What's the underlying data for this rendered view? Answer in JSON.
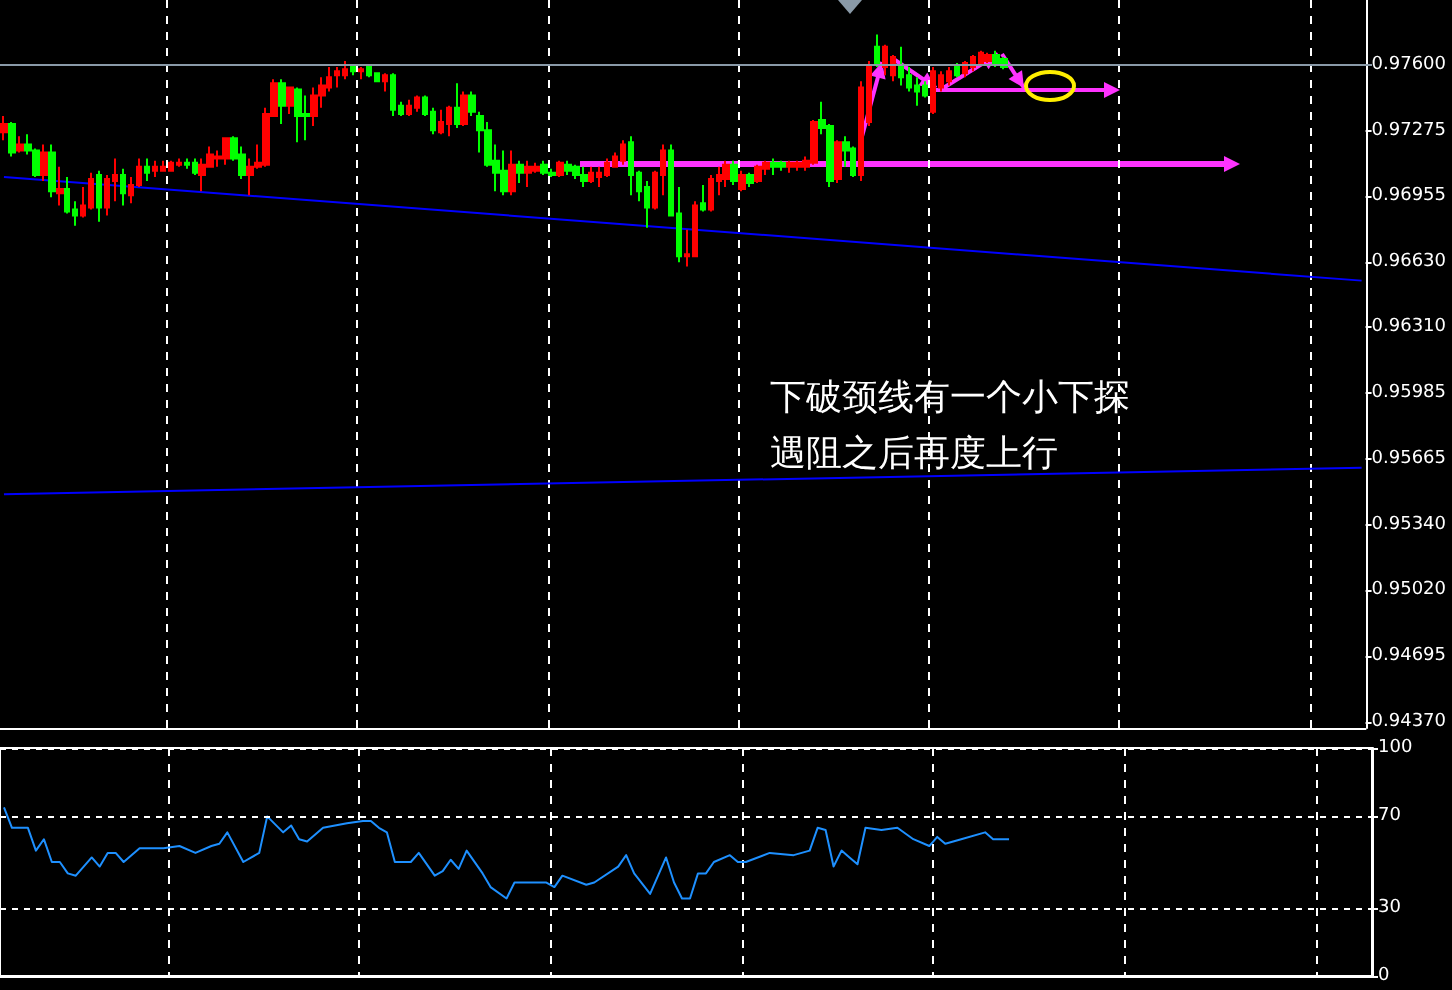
{
  "chart_data": [
    {
      "type": "candlestick",
      "tick_labels": "y",
      "grid": "x",
      "colors": [
        "#ff0000",
        "#00ff00",
        "#ff0000",
        "#00ff00",
        "#00ff00",
        "#ff0000",
        "#00ff00",
        "#ff0000",
        "#00ff00",
        "#00ff00",
        "#ff0000",
        "#ff0000",
        "#00ff00",
        "#ff0000",
        "#ff0000",
        "#00ff00",
        "#ff0000",
        "#ff0000",
        "#00ff00",
        "#ff0000",
        "#ff0000",
        "#ff0000",
        "#ff0000",
        "#00ff00",
        "#00ff00",
        "#ff0000",
        "#ff0000",
        "#ff0000",
        "#ff0000",
        "#00ff00",
        "#00ff00",
        "#ff0000",
        "#ff0000",
        "#ff0000",
        "#ff0000",
        "#00ff00",
        "#ff0000",
        "#00ff00",
        "#00ff00",
        "#ff0000",
        "#ff0000",
        "#ff0000",
        "#ff0000",
        "#ff0000",
        "#00ff00",
        "#ff0000",
        "#00ff00",
        "#00ff00",
        "#ff0000",
        "#00ff00",
        "#00ff00",
        "#ff0000",
        "#ff0000",
        "#00ff00",
        "#00ff00",
        "#ff0000",
        "#ff0000",
        "#00ff00",
        "#ff0000",
        "#00ff00",
        "#00ff00",
        "#00ff00",
        "#00ff00",
        "#00ff00",
        "#ff0000",
        "#00ff00",
        "#ff0000",
        "#ff0000",
        "#00ff00",
        "#00ff00",
        "#ff0000",
        "#00ff00",
        "#00ff00",
        "#00ff00",
        "#ff0000",
        "#ff0000",
        "#ff0000",
        "#ff0000",
        "#ff0000",
        "#00ff00",
        "#00ff00",
        "#00ff00",
        "#ff0000",
        "#ff0000",
        "#00ff00",
        "#00ff00",
        "#ff0000",
        "#ff0000",
        "#00ff00",
        "#ff0000",
        "#ff0000",
        "#ff0000",
        "#00ff00",
        "#ff0000",
        "#00ff00",
        "#ff0000",
        "#ff0000",
        "#00ff00",
        "#00ff00",
        "#ff0000",
        "#ff0000",
        "#ff0000",
        "#ff0000",
        "#00ff00",
        "#00ff00",
        "#ff0000",
        "#00ff00",
        "#00ff00",
        "#ff0000",
        "#ff0000",
        "#00ff00",
        "#ff0000",
        "#ff0000",
        "#00ff00",
        "#00ff00",
        "#00ff00",
        "#00ff00",
        "#ff0000",
        "#ff0000",
        "#ff0000",
        "#00ff00",
        "#ff0000",
        "#ff0000",
        "#ff0000",
        "#ff0000",
        "#00ff00",
        "#00ff00",
        null,
        null,
        null,
        null,
        null,
        null,
        null,
        null,
        null,
        null,
        null,
        null,
        null,
        null,
        null,
        null,
        null,
        null,
        null,
        null,
        null,
        null,
        null,
        null,
        null,
        null,
        null,
        null,
        null,
        null,
        null,
        null,
        null,
        null,
        null,
        null,
        null,
        null,
        null,
        null,
        null,
        null,
        null,
        null,
        null
      ],
      "ylim": [
        0.9434,
        0.9792
      ],
      "yticks": [
        {
          "value": 0.976,
          "label": "0.97600"
        },
        {
          "value": 0.97275,
          "label": "0.97275"
        },
        {
          "value": 0.96955,
          "label": "0.96955"
        },
        {
          "value": 0.9663,
          "label": "0.96630"
        },
        {
          "value": 0.9631,
          "label": "0.96310"
        },
        {
          "value": 0.95985,
          "label": "0.95985"
        },
        {
          "value": 0.95665,
          "label": "0.95665"
        },
        {
          "value": 0.9534,
          "label": "0.95340"
        },
        {
          "value": 0.9502,
          "label": "0.95020"
        },
        {
          "value": 0.94695,
          "label": "0.94695"
        },
        {
          "value": 0.9437,
          "label": "0.94370"
        }
      ],
      "ref_lines": [
        {
          "axis": "y",
          "value": 0.976,
          "color": "#8a9aa8"
        }
      ],
      "annotations": [
        "下破颈线有一个小下探",
        "遇阻之后再度上行"
      ],
      "categories": [
        null,
        null,
        null,
        null,
        null,
        null,
        null,
        null,
        null,
        null,
        null,
        null,
        null,
        null,
        null,
        null,
        null,
        null,
        null,
        null,
        null,
        null,
        null,
        null,
        null,
        null,
        null,
        null,
        null,
        null,
        null,
        null,
        null,
        null,
        null,
        null,
        null,
        null,
        null,
        null,
        null,
        null,
        null,
        null,
        null,
        null,
        null,
        null,
        null,
        null,
        null,
        null,
        null,
        null,
        null,
        null,
        null,
        null,
        null,
        null,
        null,
        null,
        null,
        null,
        null,
        null,
        null,
        null,
        null,
        null,
        null,
        null,
        null,
        null,
        null,
        null,
        null,
        null,
        null,
        null,
        null,
        null,
        null,
        null,
        null,
        null,
        null,
        null,
        null,
        null,
        null,
        null,
        null,
        null,
        null,
        null,
        null,
        null,
        null,
        null,
        null,
        null,
        null,
        null,
        null,
        null,
        null,
        null,
        null,
        null,
        null,
        null,
        null,
        null,
        null,
        null,
        null,
        null,
        null,
        null,
        null,
        null,
        null,
        null,
        null,
        null,
        null,
        null,
        null,
        null,
        null,
        null,
        null,
        null,
        null,
        null,
        null,
        null,
        null,
        null,
        null,
        null,
        null,
        null,
        null,
        null,
        null,
        null,
        null,
        null,
        null,
        null,
        null,
        null,
        null,
        null,
        null,
        null,
        null,
        null,
        null,
        null,
        null,
        null,
        null,
        null,
        null,
        null,
        null,
        null,
        null,
        null
      ],
      "ohlc": [
        [
          0.9727,
          0.9735,
          0.9723,
          0.9731
        ],
        [
          0.9731,
          0.9732,
          0.9715,
          0.9717
        ],
        [
          0.9718,
          0.9725,
          0.9717,
          0.9721
        ],
        [
          0.9721,
          0.9726,
          0.9716,
          0.9718
        ],
        [
          0.9718,
          0.9719,
          0.9705,
          0.9706
        ],
        [
          0.9706,
          0.9721,
          0.9703,
          0.9717
        ],
        [
          0.9717,
          0.9721,
          0.9695,
          0.9698
        ],
        [
          0.9697,
          0.971,
          0.9691,
          0.9699
        ],
        [
          0.9699,
          0.9705,
          0.9687,
          0.9688
        ],
        [
          0.9689,
          0.9693,
          0.9681,
          0.9686
        ],
        [
          0.9686,
          0.97,
          0.9685,
          0.9691
        ],
        [
          0.969,
          0.9707,
          0.9689,
          0.9704
        ],
        [
          0.9706,
          0.9708,
          0.9683,
          0.969
        ],
        [
          0.969,
          0.9706,
          0.9686,
          0.9704
        ],
        [
          0.9703,
          0.9714,
          0.9693,
          0.9706
        ],
        [
          0.9706,
          0.9709,
          0.9691,
          0.9697
        ],
        [
          0.9696,
          0.9705,
          0.9692,
          0.9701
        ],
        [
          0.9701,
          0.9714,
          0.97,
          0.971
        ],
        [
          0.971,
          0.9714,
          0.9703,
          0.9707
        ],
        [
          0.9708,
          0.9713,
          0.9705,
          0.971
        ],
        [
          0.9708,
          0.9713,
          0.9708,
          0.971
        ],
        [
          0.9708,
          0.9713,
          0.9708,
          0.9712
        ],
        [
          0.9711,
          0.9714,
          0.971,
          0.9712
        ],
        [
          0.9712,
          0.9714,
          0.9709,
          0.9711
        ],
        [
          0.9712,
          0.9714,
          0.9706,
          0.9707
        ],
        [
          0.9706,
          0.9714,
          0.9698,
          0.9711
        ],
        [
          0.971,
          0.972,
          0.971,
          0.9716
        ],
        [
          0.9714,
          0.9718,
          0.971,
          0.9715
        ],
        [
          0.9714,
          0.9724,
          0.9711,
          0.9724
        ],
        [
          0.9724,
          0.9725,
          0.9713,
          0.9714
        ],
        [
          0.9716,
          0.972,
          0.9704,
          0.9706
        ],
        [
          0.9706,
          0.9714,
          0.9696,
          0.971
        ],
        [
          0.971,
          0.9721,
          0.9709,
          0.9712
        ],
        [
          0.9711,
          0.9739,
          0.971,
          0.9736
        ],
        [
          0.9735,
          0.9753,
          0.9735,
          0.9751
        ],
        [
          0.9751,
          0.9753,
          0.9731,
          0.974
        ],
        [
          0.974,
          0.9749,
          0.9736,
          0.9749
        ],
        [
          0.9748,
          0.9749,
          0.9722,
          0.9735
        ],
        [
          0.9736,
          0.9745,
          0.9723,
          0.9735
        ],
        [
          0.9735,
          0.9749,
          0.973,
          0.9745
        ],
        [
          0.9745,
          0.9754,
          0.9739,
          0.975
        ],
        [
          0.9749,
          0.9759,
          0.9747,
          0.9754
        ],
        [
          0.9755,
          0.9759,
          0.9749,
          0.9757
        ],
        [
          0.9755,
          0.9762,
          0.9753,
          0.9758
        ],
        [
          0.9759,
          0.976,
          0.9755,
          0.9757
        ],
        [
          0.9757,
          0.9759,
          0.9753,
          0.9758
        ],
        [
          0.9759,
          0.976,
          0.9754,
          0.9755
        ],
        [
          0.9756,
          0.9756,
          0.9752,
          0.9752
        ],
        [
          0.9752,
          0.9756,
          0.9747,
          0.9755
        ],
        [
          0.9755,
          0.9756,
          0.9735,
          0.9738
        ],
        [
          0.974,
          0.9742,
          0.9735,
          0.9736
        ],
        [
          0.9736,
          0.9743,
          0.9735,
          0.974
        ],
        [
          0.9739,
          0.9745,
          0.9737,
          0.9744
        ],
        [
          0.9744,
          0.9745,
          0.9735,
          0.9736
        ],
        [
          0.9737,
          0.9739,
          0.9726,
          0.9728
        ],
        [
          0.9727,
          0.9738,
          0.9726,
          0.9732
        ],
        [
          0.9731,
          0.974,
          0.9725,
          0.9739
        ],
        [
          0.9739,
          0.9751,
          0.9729,
          0.9731
        ],
        [
          0.9731,
          0.9747,
          0.973,
          0.9745
        ],
        [
          0.9745,
          0.9747,
          0.9735,
          0.9737
        ],
        [
          0.9735,
          0.9737,
          0.9717,
          0.9728
        ],
        [
          0.9728,
          0.9732,
          0.971,
          0.9711
        ],
        [
          0.9713,
          0.9721,
          0.9698,
          0.9707
        ],
        [
          0.9708,
          0.9718,
          0.9696,
          0.9698
        ],
        [
          0.9698,
          0.9718,
          0.9696,
          0.9711
        ],
        [
          0.9711,
          0.9713,
          0.9702,
          0.9707
        ],
        [
          0.9707,
          0.9713,
          0.97,
          0.971
        ],
        [
          0.9708,
          0.9712,
          0.9707,
          0.971
        ],
        [
          0.9711,
          0.9713,
          0.9706,
          0.9707
        ],
        [
          0.9707,
          0.9709,
          0.9705,
          0.9706
        ],
        [
          0.9706,
          0.9713,
          0.9705,
          0.9712
        ],
        [
          0.9711,
          0.9713,
          0.9706,
          0.9708
        ],
        [
          0.971,
          0.9711,
          0.9704,
          0.9706
        ],
        [
          0.9706,
          0.971,
          0.97,
          0.9703
        ],
        [
          0.9703,
          0.971,
          0.9702,
          0.9707
        ],
        [
          0.9705,
          0.971,
          0.97,
          0.9707
        ],
        [
          0.9706,
          0.9714,
          0.9705,
          0.9712
        ],
        [
          0.971,
          0.9717,
          0.971,
          0.9715
        ],
        [
          0.9713,
          0.9723,
          0.9711,
          0.9721
        ],
        [
          0.9722,
          0.9725,
          0.9696,
          0.9706
        ],
        [
          0.9707,
          0.9708,
          0.9693,
          0.9698
        ],
        [
          0.97,
          0.9703,
          0.968,
          0.969
        ],
        [
          0.969,
          0.9708,
          0.9689,
          0.9707
        ],
        [
          0.9706,
          0.9721,
          0.9696,
          0.9718
        ],
        [
          0.9718,
          0.9721,
          0.9686,
          0.9686
        ],
        [
          0.9687,
          0.97,
          0.9663,
          0.9666
        ],
        [
          0.9666,
          0.9679,
          0.9661,
          0.9667
        ],
        [
          0.9666,
          0.9693,
          0.9666,
          0.9691
        ],
        [
          0.9692,
          0.9701,
          0.9688,
          0.9689
        ],
        [
          0.9689,
          0.9706,
          0.9688,
          0.9704
        ],
        [
          0.9703,
          0.971,
          0.9696,
          0.9706
        ],
        [
          0.9704,
          0.9713,
          0.97,
          0.9711
        ],
        [
          0.9711,
          0.9713,
          0.9701,
          0.9703
        ],
        [
          0.9699,
          0.9708,
          0.9698,
          0.9706
        ],
        [
          0.9706,
          0.9707,
          0.97,
          0.9702
        ],
        [
          0.9703,
          0.9711,
          0.9702,
          0.971
        ],
        [
          0.9709,
          0.9713,
          0.9706,
          0.9712
        ],
        [
          0.9712,
          0.9714,
          0.9706,
          0.971
        ],
        [
          0.9712,
          0.9713,
          0.9708,
          0.971
        ],
        [
          0.971,
          0.9713,
          0.9707,
          0.9712
        ],
        [
          0.971,
          0.9713,
          0.9708,
          0.9712
        ],
        [
          0.971,
          0.9715,
          0.9708,
          0.9713
        ],
        [
          0.9712,
          0.9733,
          0.9711,
          0.9732
        ],
        [
          0.9733,
          0.9742,
          0.9726,
          0.9729
        ],
        [
          0.973,
          0.9731,
          0.97,
          0.9703
        ],
        [
          0.9704,
          0.9723,
          0.9702,
          0.9722
        ],
        [
          0.9722,
          0.9725,
          0.971,
          0.9718
        ],
        [
          0.9719,
          0.972,
          0.9705,
          0.9706
        ],
        [
          0.9706,
          0.9752,
          0.9703,
          0.9749
        ],
        [
          0.9732,
          0.9762,
          0.973,
          0.976
        ],
        [
          0.9769,
          0.9775,
          0.9759,
          0.976
        ],
        [
          0.9759,
          0.977,
          0.9755,
          0.9769
        ],
        [
          0.9755,
          0.9765,
          0.9752,
          0.9764
        ],
        [
          0.976,
          0.9769,
          0.975,
          0.9754
        ],
        [
          0.9755,
          0.9759,
          0.9747,
          0.9749
        ],
        [
          0.975,
          0.9754,
          0.974,
          0.9747
        ],
        [
          0.975,
          0.9752,
          0.9744,
          0.9745
        ],
        [
          0.9737,
          0.9759,
          0.9736,
          0.9757
        ],
        [
          0.9749,
          0.9757,
          0.9747,
          0.9755
        ],
        [
          0.9752,
          0.9759,
          0.975,
          0.9757
        ],
        [
          0.9759,
          0.9761,
          0.9754,
          0.9755
        ],
        [
          0.9756,
          0.9762,
          0.9754,
          0.9761
        ],
        [
          0.9759,
          0.9765,
          0.9757,
          0.9764
        ],
        [
          0.9761,
          0.9767,
          0.976,
          0.9766
        ],
        [
          0.9762,
          0.9766,
          0.9761,
          0.9765
        ],
        [
          0.9765,
          0.9767,
          0.9759,
          0.976
        ],
        [
          0.9763,
          0.9764,
          0.9758,
          0.9759
        ],
        null,
        null,
        null,
        null,
        null,
        null,
        null,
        null,
        null,
        null,
        null,
        null,
        null,
        null,
        null,
        null,
        null,
        null,
        null,
        null,
        null,
        null,
        null,
        null,
        null,
        null,
        null,
        null,
        null,
        null,
        null,
        null,
        null,
        null,
        null,
        null,
        null,
        null,
        null,
        null,
        null,
        null,
        null,
        null,
        null
      ],
      "series": [
        {
          "type": "line",
          "color": "#0000ff",
          "values": [
            0.9705,
            null,
            null,
            null,
            null,
            null,
            null,
            null,
            null,
            null,
            null,
            null,
            null,
            null,
            null,
            null,
            null,
            null,
            null,
            null,
            null,
            null,
            null,
            null,
            null,
            null,
            null,
            null,
            null,
            null,
            null,
            null,
            null,
            null,
            null,
            null,
            null,
            null,
            null,
            null,
            null,
            null,
            null,
            null,
            null,
            null,
            null,
            null,
            null,
            null,
            null,
            null,
            null,
            null,
            null,
            null,
            null,
            null,
            null,
            null,
            null,
            null,
            null,
            null,
            null,
            null,
            null,
            null,
            null,
            null,
            null,
            null,
            null,
            null,
            null,
            null,
            null,
            null,
            null,
            null,
            null,
            null,
            null,
            null,
            null,
            null,
            null,
            null,
            null,
            null,
            null,
            null,
            null,
            null,
            null,
            null,
            null,
            null,
            null,
            null,
            null,
            null,
            null,
            null,
            null,
            null,
            null,
            null,
            null,
            null,
            null,
            null,
            null,
            null,
            null,
            null,
            null,
            null,
            null,
            null,
            null,
            null,
            null,
            null,
            null,
            null,
            null,
            null,
            null,
            null,
            null,
            null,
            null,
            null,
            null,
            null,
            null,
            null,
            null,
            null,
            null,
            null,
            null,
            null,
            null,
            null,
            null,
            null,
            null,
            null,
            null,
            null,
            null,
            null,
            null,
            null,
            null,
            null,
            null,
            null,
            null,
            null,
            null,
            null,
            null,
            null,
            null,
            null,
            null,
            null,
            null,
            0.9654
          ]
        },
        {
          "type": "line",
          "color": "#0000ff",
          "values": [
            0.9549,
            null,
            null,
            null,
            null,
            null,
            null,
            null,
            null,
            null,
            null,
            null,
            null,
            null,
            null,
            null,
            null,
            null,
            null,
            null,
            null,
            null,
            null,
            null,
            null,
            null,
            null,
            null,
            null,
            null,
            null,
            null,
            null,
            null,
            null,
            null,
            null,
            null,
            null,
            null,
            null,
            null,
            null,
            null,
            null,
            null,
            null,
            null,
            null,
            null,
            null,
            null,
            null,
            null,
            null,
            null,
            null,
            null,
            null,
            null,
            null,
            null,
            null,
            null,
            null,
            null,
            null,
            null,
            null,
            null,
            null,
            null,
            null,
            null,
            null,
            null,
            null,
            null,
            null,
            null,
            null,
            null,
            null,
            null,
            null,
            null,
            null,
            null,
            null,
            null,
            null,
            null,
            null,
            null,
            null,
            null,
            null,
            null,
            null,
            null,
            null,
            null,
            null,
            null,
            null,
            null,
            null,
            null,
            null,
            null,
            null,
            null,
            null,
            null,
            null,
            null,
            null,
            null,
            null,
            null,
            null,
            null,
            null,
            null,
            null,
            null,
            null,
            null,
            null,
            null,
            null,
            null,
            null,
            null,
            null,
            null,
            null,
            null,
            null,
            null,
            null,
            null,
            null,
            null,
            null,
            null,
            null,
            null,
            null,
            null,
            null,
            null,
            null,
            null,
            null,
            null,
            null,
            null,
            null,
            null,
            null,
            null,
            null,
            null,
            null,
            null,
            null,
            null,
            null,
            null,
            null,
            0.9562
          ]
        }
      ]
    },
    {
      "type": "line",
      "tick_labels": "y",
      "grid": true,
      "color": "#1e90ff",
      "ylim": [
        0,
        100
      ],
      "yticks": [
        0,
        30,
        70,
        100
      ],
      "categories": [
        null,
        null,
        null,
        null,
        null,
        null,
        null,
        null,
        null,
        null,
        null,
        null,
        null,
        null,
        null,
        null,
        null,
        null,
        null,
        null,
        null,
        null,
        null,
        null,
        null,
        null,
        null,
        null,
        null,
        null,
        null,
        null,
        null,
        null,
        null,
        null,
        null,
        null,
        null,
        null,
        null,
        null,
        null,
        null,
        null,
        null,
        null,
        null,
        null,
        null,
        null,
        null,
        null,
        null,
        null,
        null,
        null,
        null,
        null,
        null,
        null,
        null,
        null,
        null,
        null,
        null,
        null,
        null,
        null,
        null,
        null,
        null,
        null,
        null,
        null,
        null,
        null,
        null,
        null,
        null,
        null,
        null,
        null,
        null,
        null,
        null,
        null,
        null,
        null,
        null,
        null,
        null,
        null,
        null,
        null,
        null,
        null,
        null,
        null,
        null,
        null,
        null,
        null,
        null,
        null,
        null,
        null,
        null,
        null,
        null,
        null,
        null,
        null,
        null,
        null,
        null,
        null,
        null,
        null,
        null,
        null,
        null,
        null,
        null,
        null,
        null,
        null,
        null,
        null,
        null,
        null,
        null,
        null,
        null,
        null,
        null,
        null,
        null,
        null,
        null,
        null,
        null,
        null,
        null,
        null,
        null,
        null,
        null,
        null,
        null,
        null,
        null,
        null,
        null,
        null,
        null,
        null,
        null,
        null,
        null,
        null,
        null,
        null,
        null,
        null,
        null,
        null,
        null,
        null,
        null,
        null,
        null
      ],
      "values": [
        74,
        65,
        null,
        65,
        55,
        60,
        50,
        50,
        45,
        44,
        null,
        52,
        48,
        54,
        54,
        50,
        null,
        56,
        null,
        null,
        56,
        null,
        57,
        null,
        54,
        null,
        57,
        58,
        63,
        null,
        50,
        null,
        54,
        70,
        null,
        63,
        66,
        60,
        59,
        null,
        65,
        null,
        null,
        67,
        null,
        68,
        68,
        65,
        63,
        50,
        null,
        50,
        54,
        null,
        44,
        46,
        51,
        47,
        55,
        null,
        45,
        39,
        null,
        34,
        41,
        null,
        41,
        null,
        41,
        39,
        44,
        null,
        null,
        40,
        41,
        null,
        null,
        48,
        53,
        45,
        null,
        36,
        null,
        52,
        41,
        34,
        34,
        45,
        45,
        50,
        null,
        53,
        50,
        50,
        null,
        null,
        54,
        null,
        null,
        53,
        null,
        55,
        65,
        64,
        48,
        55,
        52,
        49,
        65,
        null,
        64,
        null,
        65,
        null,
        60,
        null,
        57,
        61,
        58,
        null,
        60,
        null,
        null,
        63,
        60,
        null,
        60,
        null,
        null,
        null,
        null,
        null,
        null,
        null,
        null,
        null,
        null,
        null,
        null,
        null,
        null,
        null,
        null,
        null,
        null,
        null,
        null,
        null,
        null,
        null,
        null,
        null,
        null,
        null,
        null,
        null,
        null,
        null,
        null,
        null,
        null,
        null,
        null,
        null,
        null,
        null,
        null,
        null,
        null,
        null,
        null,
        null
      ]
    }
  ]
}
